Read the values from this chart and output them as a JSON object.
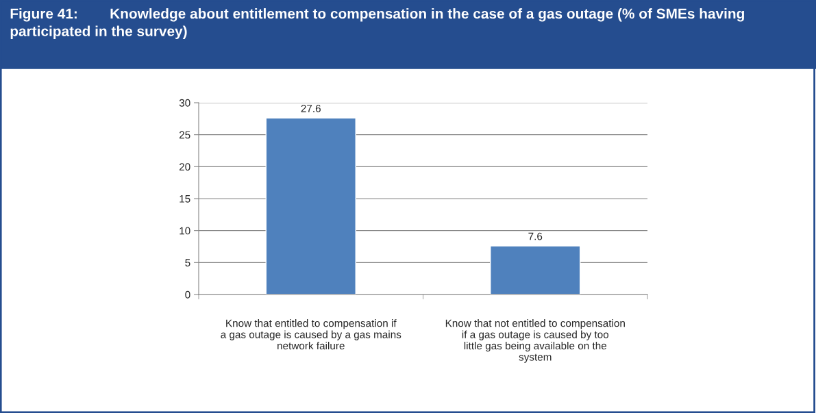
{
  "chart_data": {
    "type": "bar",
    "title": "Figure 41:        Knowledge about entitlement to compensation in the case of a gas outage (% of SMEs having participated in the survey)",
    "categories": [
      "Know that entitled to compensation if a gas outage is caused by a gas mains network failure",
      "Know that not entitled to compensation if a gas outage is caused by too little gas being available on the system"
    ],
    "values": [
      27.6,
      7.6
    ],
    "color": "#4f81bd",
    "ylim": [
      0,
      30
    ],
    "yticks": [
      0,
      5,
      10,
      15,
      20,
      25,
      30
    ],
    "grid": "y",
    "data_labels": true
  }
}
